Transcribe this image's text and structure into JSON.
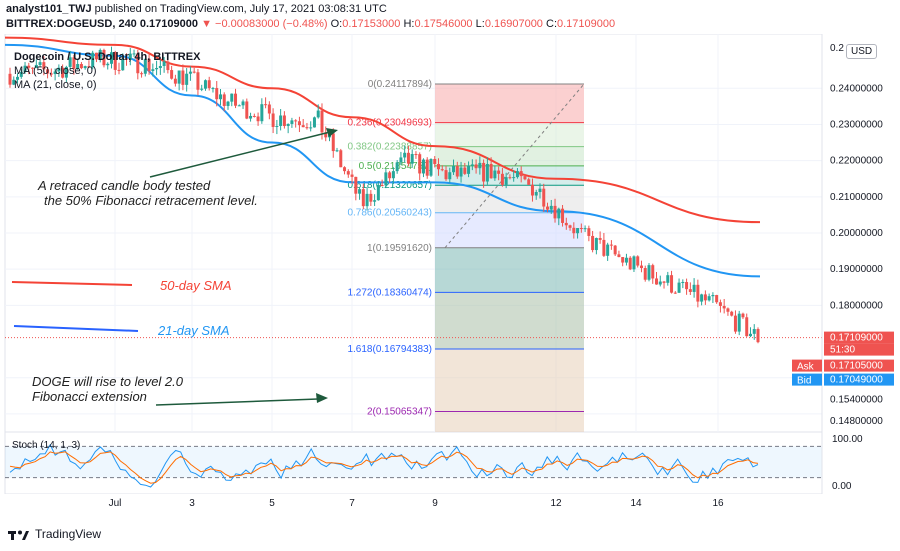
{
  "header": {
    "publisher": "analyst101_TWJ",
    "published_text": "published on TradingView.com, July 17, 2021 03:08:31 UTC",
    "symbol": "BITTREX:DOGEUSD, 240",
    "last": "0.17109000",
    "change": "−0.00083000 (−0.48%)",
    "ohlc": {
      "o": "0.17153000",
      "h": "0.17546000",
      "l": "0.16907000",
      "c": "0.17109000"
    }
  },
  "legend": {
    "title": "Dogecoin / U.S. Dollar, 4h, BITTREX",
    "ma50": "MA (50, close, 0)",
    "ma21": "MA (21, close, 0)"
  },
  "currency_badge": "USD",
  "price_axis": {
    "ticks": [
      "0.24000000",
      "0.23000000",
      "0.22000000",
      "0.21000000",
      "0.20000000",
      "0.19000000",
      "0.18000000",
      "0.15400000",
      "0.14800000"
    ],
    "top_cut": "0.2",
    "current_price": "0.17109000",
    "countdown": "51:30",
    "ask_label": "Ask",
    "ask": "0.17105000",
    "bid_label": "Bid",
    "bid": "0.17049000"
  },
  "fib_levels": [
    {
      "label": "0(0.24117894)",
      "value": 0.24117894,
      "color": "#808080"
    },
    {
      "label": "0.236(0.23049693)",
      "value": 0.23049693,
      "color": "#f23645"
    },
    {
      "label": "0.382(0.22388857)",
      "value": 0.22388857,
      "color": "#81c784"
    },
    {
      "label": "0.5(0.21854757)",
      "value": 0.21854757,
      "color": "#4caf50"
    },
    {
      "label": "0.618(0.21320657)",
      "value": 0.21320657,
      "color": "#089981"
    },
    {
      "label": "0.786(0.20560243)",
      "value": 0.20560243,
      "color": "#64b5f6"
    },
    {
      "label": "1(0.19591620)",
      "value": 0.1959162,
      "color": "#808080"
    },
    {
      "label": "1.272(0.18360474)",
      "value": 0.18360474,
      "color": "#2962ff"
    },
    {
      "label": "1.618(0.16794383)",
      "value": 0.16794383,
      "color": "#2962ff"
    },
    {
      "label": "2(0.15065347)",
      "value": 0.15065347,
      "color": "#9c27b0"
    }
  ],
  "annotations": {
    "retrace_line1": "A retraced candle body tested",
    "retrace_line2": "the  50% Fibonacci retracement level.",
    "sma50": "50-day SMA",
    "sma21": "21-day SMA",
    "doge_line1": "DOGE will rise to level 2.0",
    "doge_line2": "Fibonacci extension"
  },
  "colors": {
    "sma50": "#f44336",
    "sma21": "#2196f3",
    "up": "#26a69a",
    "down": "#ef5350"
  },
  "stoch": {
    "label": "Stoch (14, 1, 3)",
    "ticks": [
      "100.00",
      "0.00"
    ],
    "upper_band": 80,
    "lower_band": 20
  },
  "x_axis": [
    "Jul",
    "3",
    "5",
    "7",
    "9",
    "12",
    "14",
    "16"
  ],
  "footer": {
    "brand": "TradingView"
  },
  "chart_data": {
    "type": "line",
    "title": "Dogecoin / U.S. Dollar, 4h, BITTREX",
    "ylabel": "USD",
    "ylim": [
      0.145,
      0.255
    ],
    "x": [
      "Jul",
      "3",
      "5",
      "7",
      "9",
      "12",
      "14",
      "16"
    ],
    "series": [
      {
        "name": "MA (50, close, 0)",
        "values": [
          0.254,
          0.252,
          0.246,
          0.24,
          0.232,
          0.224,
          0.215,
          0.203
        ]
      },
      {
        "name": "MA (21, close, 0)",
        "values": [
          0.252,
          0.249,
          0.238,
          0.225,
          0.214,
          0.214,
          0.206,
          0.188
        ]
      }
    ],
    "close_path": [
      0.244,
      0.245,
      0.248,
      0.247,
      0.243,
      0.236,
      0.232,
      0.231,
      0.208,
      0.22,
      0.216,
      0.217,
      0.212,
      0.199,
      0.192,
      0.186,
      0.18,
      0.171
    ],
    "current": 0.17109
  }
}
